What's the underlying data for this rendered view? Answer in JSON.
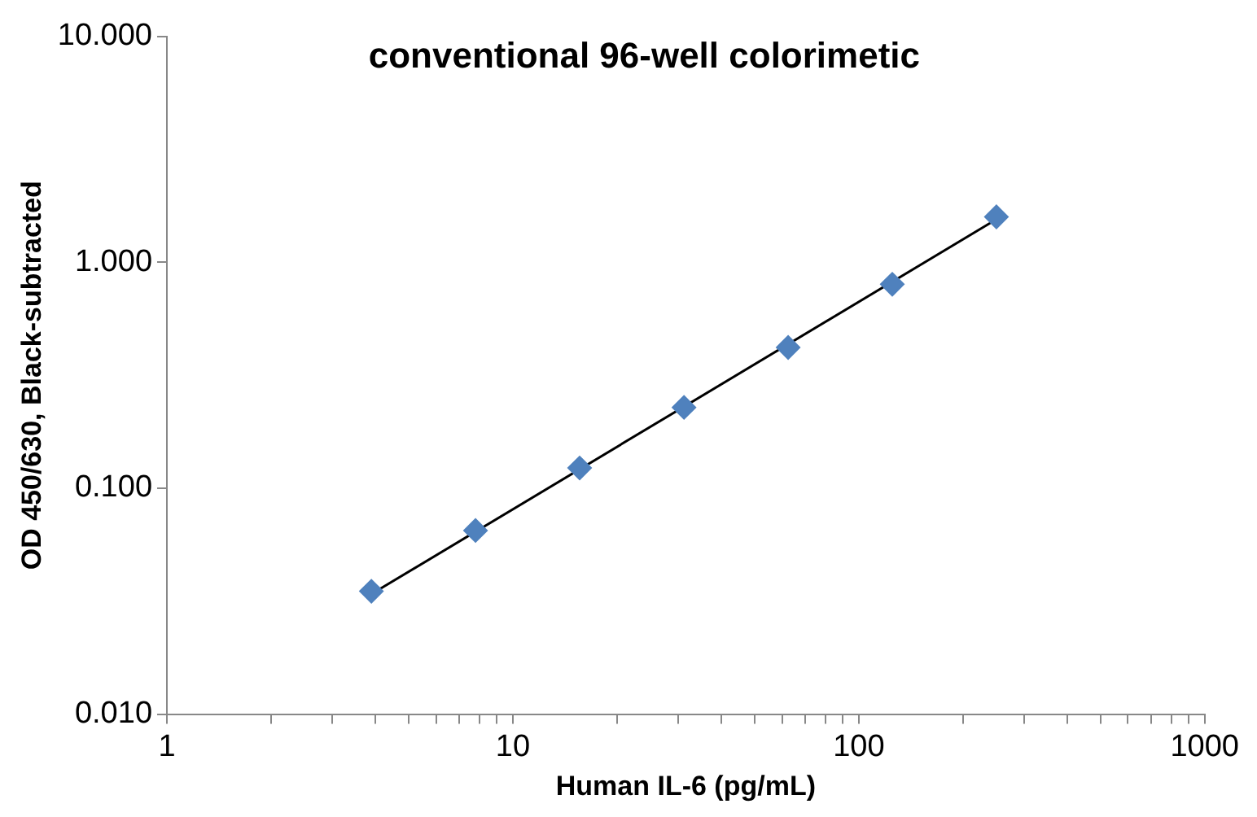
{
  "chart_data": {
    "type": "scatter",
    "title": "conventional 96-well colorimetic",
    "xlabel": "Human IL-6 (pg/mL)",
    "ylabel": "OD 450/630, Black-subtracted",
    "log": "xy",
    "grid": false,
    "legend": false,
    "xlim": [
      1,
      1000
    ],
    "ylim": [
      0.01,
      10
    ],
    "xticks": [
      1,
      {
        "value": 2,
        "label": null
      },
      {
        "value": 3,
        "label": null
      },
      {
        "value": 4,
        "label": null
      },
      {
        "value": 5,
        "label": null
      },
      {
        "value": 6,
        "label": null
      },
      {
        "value": 7,
        "label": null
      },
      {
        "value": 8,
        "label": null
      },
      {
        "value": 9,
        "label": null
      },
      10,
      {
        "value": 20,
        "label": null
      },
      {
        "value": 30,
        "label": null
      },
      {
        "value": 40,
        "label": null
      },
      {
        "value": 50,
        "label": null
      },
      {
        "value": 60,
        "label": null
      },
      {
        "value": 70,
        "label": null
      },
      {
        "value": 80,
        "label": null
      },
      {
        "value": 90,
        "label": null
      },
      100,
      {
        "value": 200,
        "label": null
      },
      {
        "value": 300,
        "label": null
      },
      {
        "value": 400,
        "label": null
      },
      {
        "value": 500,
        "label": null
      },
      {
        "value": 600,
        "label": null
      },
      {
        "value": 700,
        "label": null
      },
      {
        "value": 800,
        "label": null
      },
      {
        "value": 900,
        "label": null
      },
      1000
    ],
    "yticks": [
      {
        "value": 0.01,
        "label": "0.010"
      },
      {
        "value": 0.1,
        "label": "0.100"
      },
      {
        "value": 1,
        "label": "1.000"
      },
      {
        "value": 10,
        "label": "10.000"
      }
    ],
    "series": [
      {
        "type": "line",
        "color": "#000000",
        "marker": "none",
        "line_style": "solid",
        "x": [
          3.9,
          250
        ],
        "values": [
          0.034,
          1.55
        ]
      },
      {
        "type": "scatter",
        "color": "#4f81bd",
        "marker": "diamond",
        "x": [
          3.9,
          7.8,
          15.6,
          31.25,
          62.5,
          125,
          250
        ],
        "values": [
          0.035,
          0.065,
          0.123,
          0.228,
          0.42,
          0.8,
          1.59
        ]
      }
    ]
  }
}
